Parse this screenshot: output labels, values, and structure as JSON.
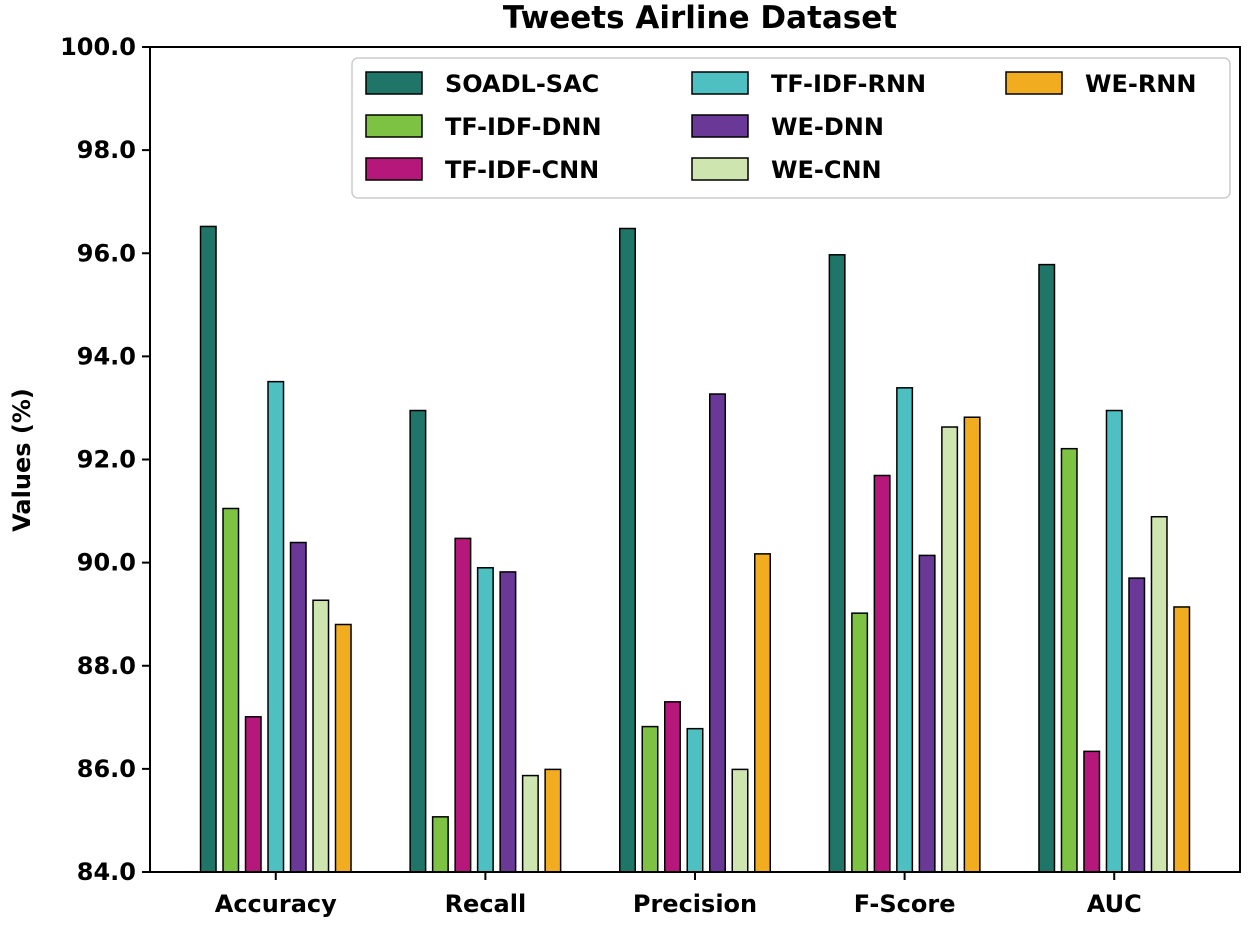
{
  "chart_data": {
    "type": "bar",
    "title": "Tweets Airline Dataset",
    "xlabel": "",
    "ylabel": "Values (%)",
    "ylim": [
      84.0,
      100.0
    ],
    "yticks": [
      84.0,
      86.0,
      88.0,
      90.0,
      92.0,
      94.0,
      96.0,
      98.0,
      100.0
    ],
    "ytick_labels": [
      "84.0",
      "86.0",
      "88.0",
      "90.0",
      "92.0",
      "94.0",
      "96.0",
      "98.0",
      "100.0"
    ],
    "categories": [
      "Accuracy",
      "Recall",
      "Precision",
      "F-Score",
      "AUC"
    ],
    "series": [
      {
        "name": "SOADL-SAC",
        "color": "#1f7668",
        "values": [
          96.52,
          92.95,
          96.48,
          95.97,
          95.78
        ]
      },
      {
        "name": "TF-IDF-DNN",
        "color": "#7dc242",
        "values": [
          91.05,
          85.07,
          86.82,
          89.02,
          92.21
        ]
      },
      {
        "name": "TF-IDF-CNN",
        "color": "#b5177b",
        "values": [
          87.01,
          90.47,
          87.3,
          91.69,
          86.34
        ]
      },
      {
        "name": "TF-IDF-RNN",
        "color": "#4fc0c2",
        "values": [
          93.51,
          89.9,
          86.78,
          93.39,
          92.95
        ]
      },
      {
        "name": "WE-DNN",
        "color": "#6a3896",
        "values": [
          90.39,
          89.82,
          93.27,
          90.14,
          89.7
        ]
      },
      {
        "name": "WE-CNN",
        "color": "#cfe5b0",
        "values": [
          89.27,
          85.87,
          85.99,
          92.63,
          90.89
        ]
      },
      {
        "name": "WE-RNN",
        "color": "#f2ac20",
        "values": [
          88.8,
          85.99,
          90.17,
          92.82,
          89.14
        ]
      }
    ],
    "legend_position": "top-right",
    "grid": false
  }
}
